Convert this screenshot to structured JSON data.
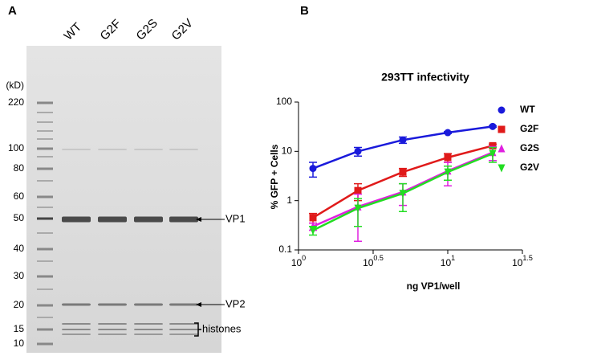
{
  "gel": {
    "panel": "A",
    "lanes": [
      "WT",
      "G2F",
      "G2S",
      "G2V"
    ],
    "unit": "(kD)",
    "markers": [
      220,
      100,
      80,
      60,
      50,
      40,
      30,
      20,
      15,
      10
    ],
    "bands": [
      "VP1",
      "VP2",
      "histones"
    ]
  },
  "chart_data": {
    "type": "scatter",
    "panel": "B",
    "title": "293TT infectivity",
    "x_label": "ng VP1/well",
    "y_label": "% GFP + Cells",
    "x": [
      1.25,
      2.5,
      5,
      10,
      20
    ],
    "xlim": [
      1,
      31.6228
    ],
    "ylim": [
      0.1,
      100
    ],
    "x_log": true,
    "y_log": true,
    "xticks": [
      {
        "value": 1,
        "label": "10",
        "exponent": "0"
      },
      {
        "value": 3.16228,
        "label": "10",
        "exponent": "0.5"
      },
      {
        "value": 10,
        "label": "10",
        "exponent": "1"
      },
      {
        "value": 31.6228,
        "label": "10",
        "exponent": "1.5"
      }
    ],
    "yticks": [
      0.1,
      1,
      10,
      100
    ],
    "series": [
      {
        "name": "WT",
        "color": "#1a1adb",
        "marker": "circle",
        "values": [
          4.5,
          10,
          17,
          24,
          32
        ],
        "errors": [
          1.5,
          2,
          2.5,
          1,
          1
        ]
      },
      {
        "name": "G2F",
        "color": "#e01a1a",
        "marker": "square",
        "values": [
          0.45,
          1.6,
          3.8,
          7.5,
          13
        ],
        "errors": [
          0.1,
          0.6,
          0.7,
          1.5,
          1
        ]
      },
      {
        "name": "G2S",
        "color": "#e020e0",
        "marker": "triangle-up",
        "values": [
          0.3,
          0.75,
          1.5,
          4,
          9.5
        ],
        "errors": [
          0.05,
          0.6,
          0.7,
          2,
          3
        ]
      },
      {
        "name": "G2V",
        "color": "#22dd22",
        "marker": "triangle-down",
        "values": [
          0.25,
          0.7,
          1.4,
          3.8,
          9
        ],
        "errors": [
          0.05,
          0.4,
          0.8,
          1.2,
          3
        ]
      }
    ],
    "legend": "right"
  }
}
